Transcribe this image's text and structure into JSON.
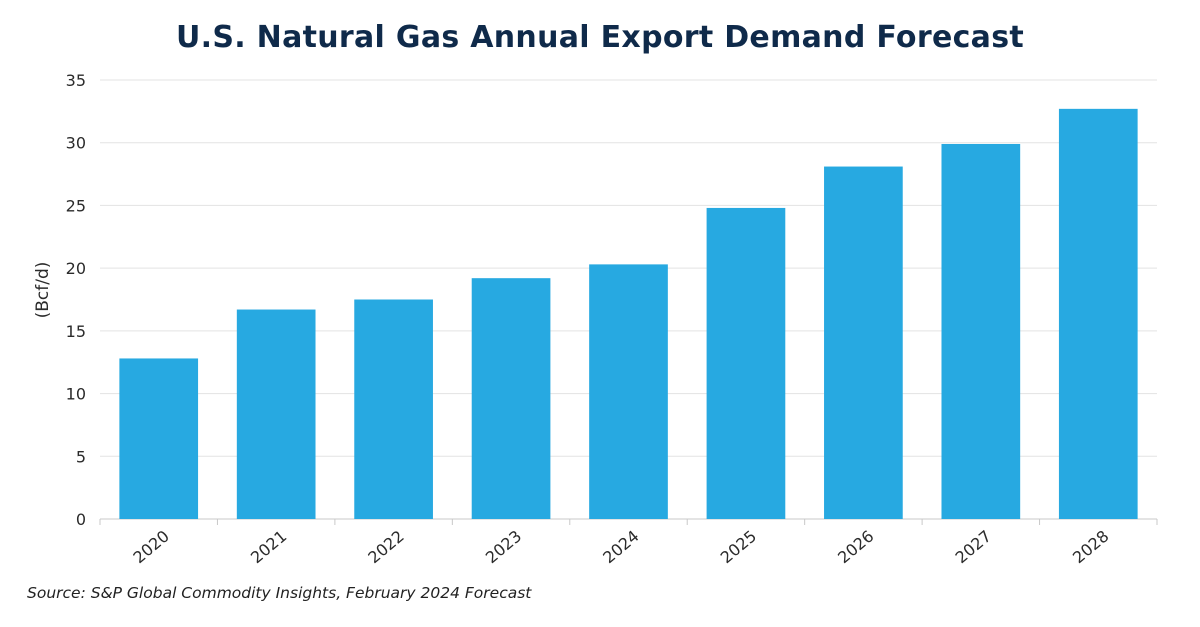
{
  "chart_data": {
    "type": "bar",
    "title": "U.S. Natural Gas Annual Export Demand Forecast",
    "xlabel": "",
    "ylabel": "(Bcf/d)",
    "categories": [
      "2020",
      "2021",
      "2022",
      "2023",
      "2024",
      "2025",
      "2026",
      "2027",
      "2028"
    ],
    "values": [
      12.8,
      16.7,
      17.5,
      19.2,
      20.3,
      24.8,
      28.1,
      29.9,
      32.7
    ],
    "ylim": [
      0,
      35
    ],
    "yticks": [
      "0",
      "5",
      "10",
      "15",
      "20",
      "25",
      "30",
      "35"
    ],
    "grid": true,
    "bar_color": "#27a9e1",
    "source": "Source: S&P Global Commodity Insights, February 2024 Forecast"
  }
}
